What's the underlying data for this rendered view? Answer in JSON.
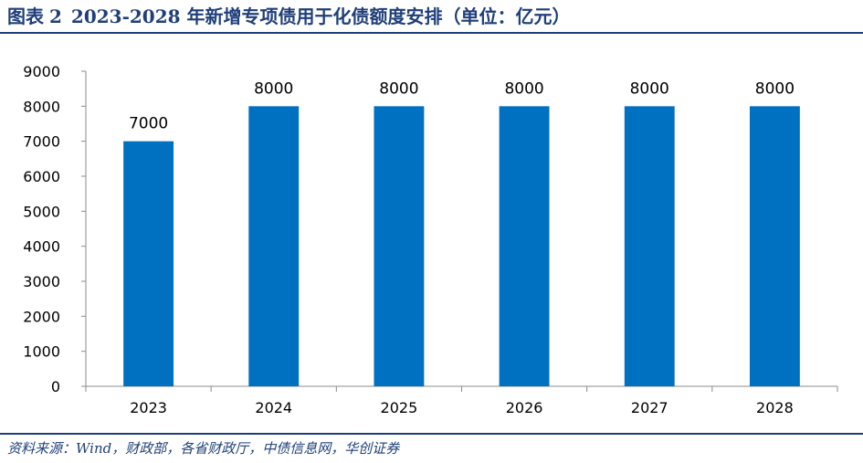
{
  "figure": {
    "label": "图表",
    "number": "2",
    "caption": "2023-2028 年新增专项债用于化债额度安排（单位：亿元）"
  },
  "source": "资料来源：Wind，财政部，各省财政厅，中债信息网，华创证券",
  "chart_data": {
    "type": "bar",
    "title": "2023-2028 年新增专项债用于化债额度安排（单位：亿元）",
    "categories": [
      "2023",
      "2024",
      "2025",
      "2026",
      "2027",
      "2028"
    ],
    "values": [
      7000,
      8000,
      8000,
      8000,
      8000,
      8000
    ],
    "data_labels": [
      "7000",
      "8000",
      "8000",
      "8000",
      "8000",
      "8000"
    ],
    "ylim": [
      0,
      9000
    ],
    "yticks": [
      0,
      1000,
      2000,
      3000,
      4000,
      5000,
      6000,
      7000,
      8000,
      9000
    ],
    "xlabel": "",
    "ylabel": "",
    "bar_color": "#0070c0",
    "grid": false,
    "legend": "none"
  }
}
